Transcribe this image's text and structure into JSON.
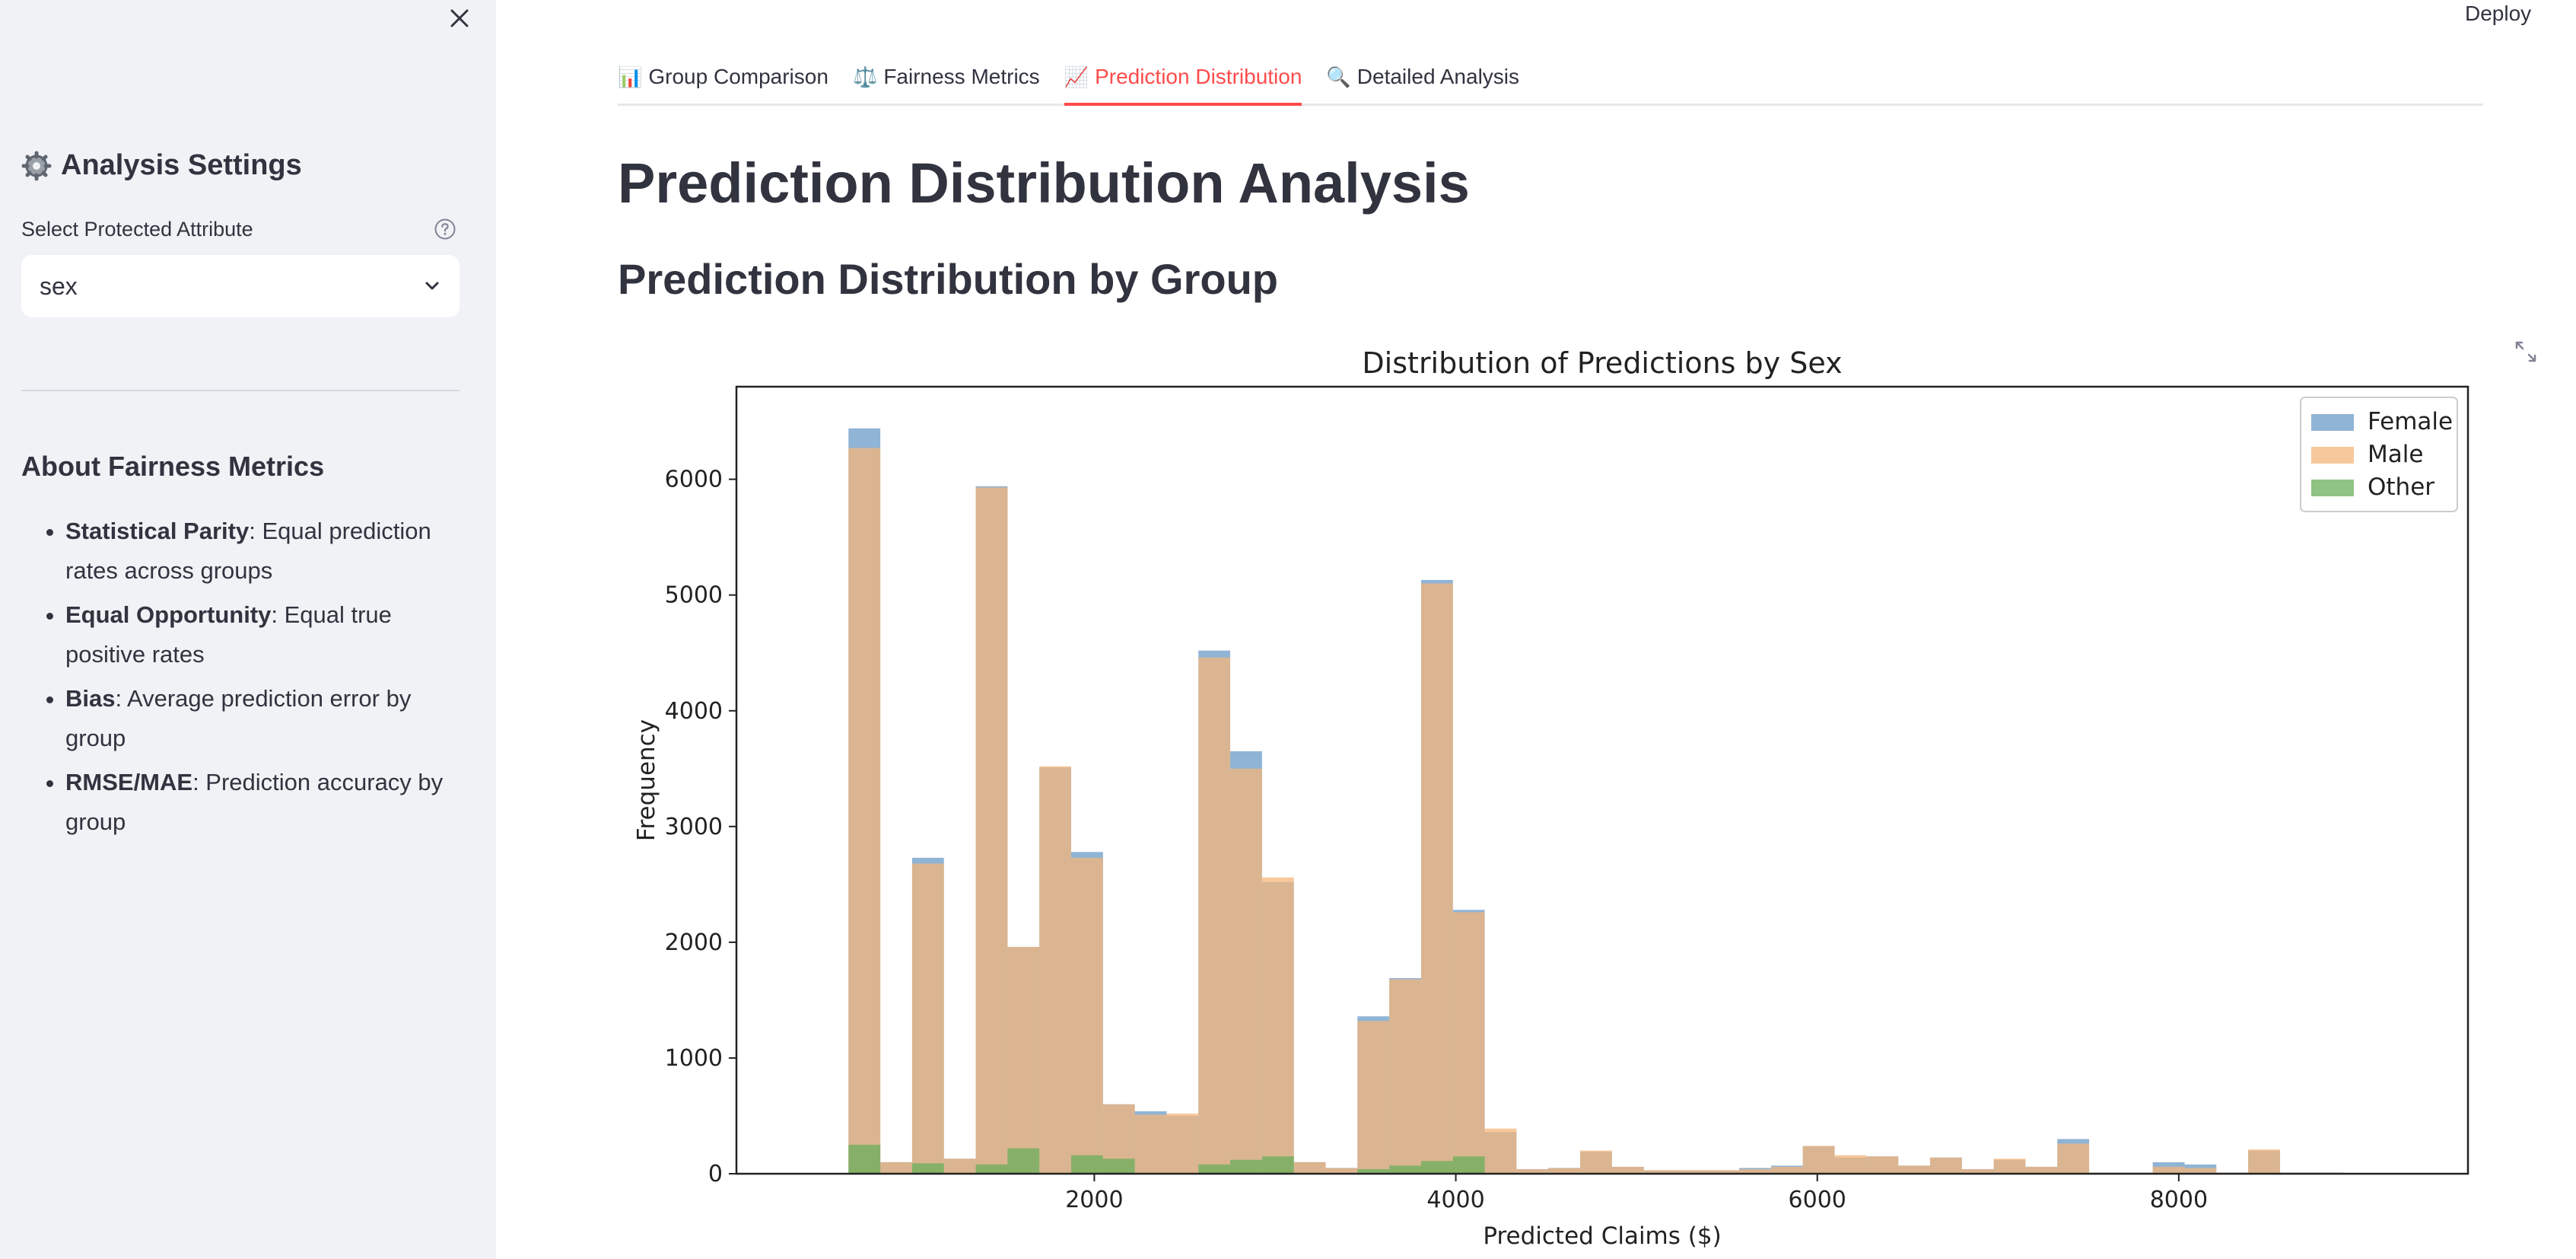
{
  "sidebar": {
    "close_icon": "close-icon",
    "settings_title": "Analysis Settings",
    "settings_icon": "gear-icon",
    "select_label": "Select Protected Attribute",
    "help_icon": "help-circle-icon",
    "select_value": "sex",
    "about_title": "About Fairness Metrics",
    "about_items": [
      {
        "term": "Statistical Parity",
        "desc": ": Equal prediction rates across groups"
      },
      {
        "term": "Equal Opportunity",
        "desc": ": Equal true positive rates"
      },
      {
        "term": "Bias",
        "desc": ": Average prediction error by group"
      },
      {
        "term": "RMSE/MAE",
        "desc": ": Prediction accuracy by group"
      }
    ]
  },
  "header": {
    "deploy_label": "Deploy"
  },
  "tabs": [
    {
      "icon": "📊",
      "label": "Group Comparison",
      "active": false
    },
    {
      "icon": "⚖️",
      "label": "Fairness Metrics",
      "active": false
    },
    {
      "icon": "📈",
      "label": "Prediction Distribution",
      "active": true
    },
    {
      "icon": "🔍",
      "label": "Detailed Analysis",
      "active": false
    }
  ],
  "main": {
    "title": "Prediction Distribution Analysis",
    "subtitle": "Prediction Distribution by Group"
  },
  "chart_data": {
    "type": "bar",
    "title": "Distribution of Predictions by Sex",
    "xlabel": "Predicted Claims ($)",
    "ylabel": "Frequency",
    "xlim": [
      20,
      9600
    ],
    "ylim": [
      0,
      6800
    ],
    "xticks": [
      2000,
      4000,
      6000,
      8000
    ],
    "yticks": [
      0,
      1000,
      2000,
      3000,
      4000,
      5000,
      6000
    ],
    "legend_position": "top-right",
    "bin_start": 640,
    "bin_width": 176,
    "series": [
      {
        "name": "Female",
        "color": "#6b9bc7",
        "values": [
          6440,
          100,
          2730,
          130,
          5940,
          1960,
          3510,
          2780,
          600,
          540,
          500,
          4520,
          3650,
          2520,
          100,
          50,
          1360,
          1690,
          5130,
          2280,
          360,
          40,
          50,
          190,
          60,
          30,
          30,
          30,
          50,
          70,
          240,
          140,
          150,
          70,
          140,
          40,
          120,
          60,
          300,
          10,
          10,
          100,
          80,
          10,
          200,
          10,
          10,
          0,
          0,
          0
        ]
      },
      {
        "name": "Male",
        "color": "#f4b57a",
        "values": [
          6270,
          100,
          2680,
          130,
          5930,
          1960,
          3520,
          2730,
          600,
          510,
          520,
          4460,
          3500,
          2560,
          100,
          50,
          1320,
          1680,
          5100,
          2260,
          390,
          40,
          50,
          200,
          60,
          30,
          30,
          30,
          40,
          60,
          240,
          160,
          150,
          70,
          140,
          40,
          130,
          60,
          260,
          10,
          10,
          60,
          50,
          10,
          210,
          10,
          10,
          0,
          0,
          0
        ]
      },
      {
        "name": "Other",
        "color": "#6aaf5a",
        "values": [
          250,
          0,
          90,
          0,
          80,
          220,
          0,
          160,
          130,
          0,
          0,
          80,
          120,
          150,
          0,
          0,
          40,
          70,
          110,
          150,
          0,
          0,
          0,
          0,
          0,
          0,
          0,
          0,
          0,
          0,
          0,
          0,
          0,
          0,
          0,
          0,
          0,
          0,
          0,
          0,
          0,
          0,
          0,
          0,
          0,
          0,
          0,
          0,
          0,
          0
        ]
      }
    ]
  }
}
